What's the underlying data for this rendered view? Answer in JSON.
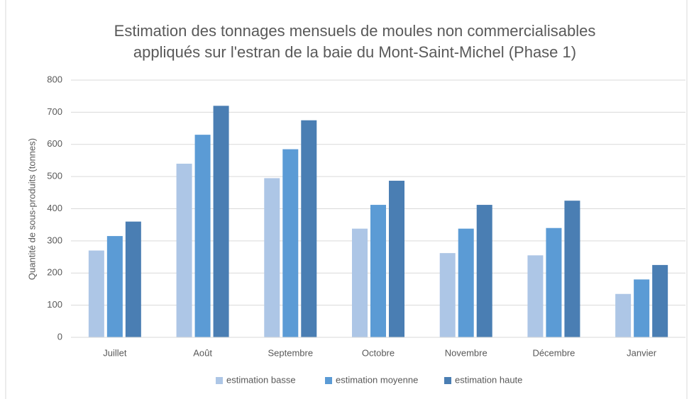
{
  "chart_data": {
    "type": "bar",
    "title": [
      "Estimation des tonnages mensuels de moules non commercialisables",
      "appliqués sur l'estran de la baie du Mont-Saint-Michel (Phase 1)"
    ],
    "y_label": "Quantité de sous-produits (tonnes)",
    "categories": [
      "Juillet",
      "Août",
      "Septembre",
      "Octobre",
      "Novembre",
      "Décembre",
      "Janvier"
    ],
    "series": [
      {
        "name": "estimation basse",
        "color": "#adc6e6",
        "values": [
          270,
          540,
          495,
          338,
          262,
          255,
          135
        ]
      },
      {
        "name": "estimation moyenne",
        "color": "#5b9bd5",
        "values": [
          315,
          630,
          585,
          412,
          338,
          340,
          180
        ]
      },
      {
        "name": "estimation haute",
        "color": "#4a7eb3",
        "values": [
          360,
          720,
          675,
          487,
          412,
          425,
          225
        ]
      }
    ],
    "ylim": [
      0,
      800
    ],
    "yticks": [
      0,
      100,
      200,
      300,
      400,
      500,
      600,
      700,
      800
    ],
    "grid": true,
    "legend": "bottom"
  }
}
